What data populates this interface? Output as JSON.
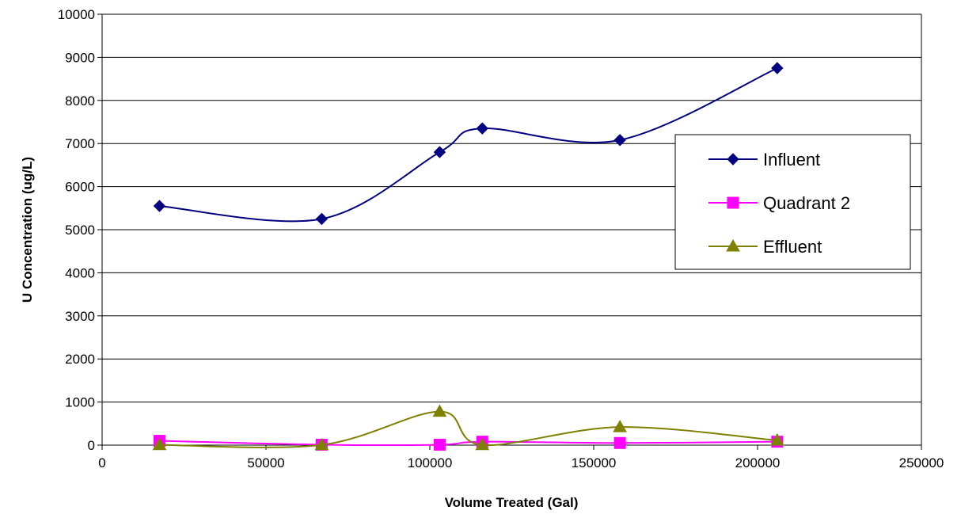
{
  "chart_data": {
    "type": "line",
    "title": "",
    "xlabel": "Volume Treated (Gal)",
    "ylabel": "U Concentration (ug/L)",
    "xlim": [
      0,
      250000
    ],
    "ylim": [
      0,
      10000
    ],
    "xticks": [
      "0",
      "50000",
      "100000",
      "150000",
      "200000",
      "250000"
    ],
    "yticks": [
      "0",
      "1000",
      "2000",
      "3000",
      "4000",
      "5000",
      "6000",
      "7000",
      "8000",
      "9000",
      "10000"
    ],
    "grid": "horizontal",
    "legend_position": "right",
    "series": [
      {
        "name": "Influent",
        "color": "#000080",
        "marker": "diamond",
        "points": [
          [
            17500,
            5550
          ],
          [
            67000,
            5250
          ],
          [
            103000,
            6800
          ],
          [
            116000,
            7350
          ],
          [
            158000,
            7080
          ],
          [
            206000,
            8750
          ]
        ]
      },
      {
        "name": "Quadrant 2",
        "color": "#FF00FF",
        "marker": "square",
        "points": [
          [
            17500,
            100
          ],
          [
            67000,
            10
          ],
          [
            103000,
            10
          ],
          [
            116000,
            80
          ],
          [
            158000,
            50
          ],
          [
            206000,
            80
          ]
        ]
      },
      {
        "name": "Effluent",
        "color": "#808000",
        "marker": "triangle",
        "points": [
          [
            17500,
            5
          ],
          [
            67000,
            5
          ],
          [
            103000,
            780
          ],
          [
            116000,
            5
          ],
          [
            158000,
            420
          ],
          [
            206000,
            110
          ]
        ]
      }
    ]
  }
}
